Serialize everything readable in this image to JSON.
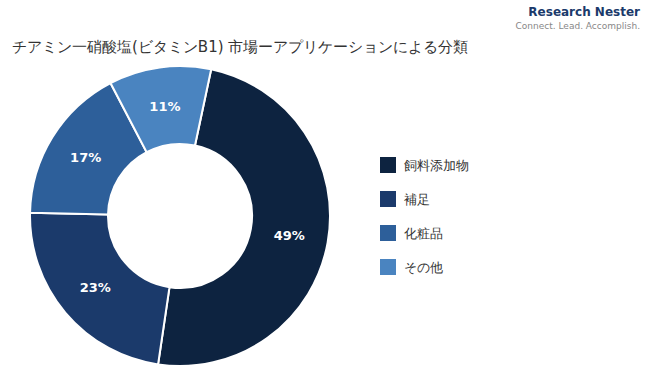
{
  "chart_data": {
    "type": "donut",
    "title": "チアミン一硝酸塩(ビタミンB1) 市場ーアプリケーションによる分類",
    "categories": [
      "飼料添加物",
      "補足",
      "化粧品",
      "その他"
    ],
    "values": [
      49,
      23,
      17,
      11
    ],
    "value_labels": [
      "49%",
      "23%",
      "17%",
      "11%"
    ],
    "colors": [
      "#0d2340",
      "#1b3a6b",
      "#2d5f9a",
      "#4a84c0"
    ],
    "data_labels": true,
    "legend": "right",
    "annotations": [
      "Research Nester",
      "Connect. Lead. Accomplish."
    ]
  }
}
